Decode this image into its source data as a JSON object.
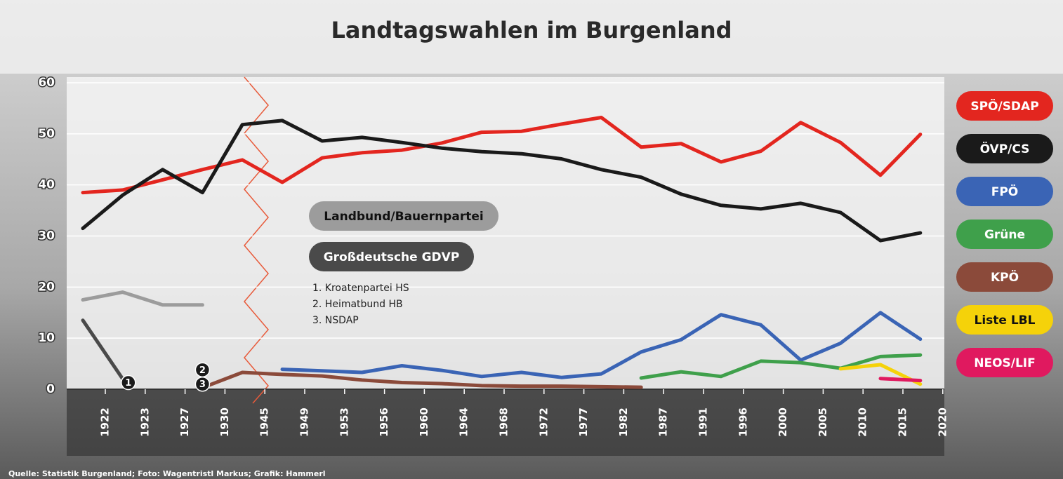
{
  "chart_data": {
    "type": "line",
    "title": "Landtagswahlen im Burgenland",
    "source": "Quelle: Statistik Burgenland; Foto: Wagentristl Markus; Grafik: Hammerl",
    "categories": [
      "1922",
      "1923",
      "1927",
      "1930",
      "1945",
      "1949",
      "1953",
      "1956",
      "1960",
      "1964",
      "1968",
      "1972",
      "1977",
      "1982",
      "1987",
      "1991",
      "1996",
      "2000",
      "2005",
      "2010",
      "2015",
      "2020"
    ],
    "ylim": [
      0,
      60
    ],
    "yticks": [
      0,
      10,
      20,
      30,
      40,
      50,
      60
    ],
    "grid": true,
    "series": [
      {
        "name": "SPÖ/SDAP",
        "color": "#e3261f",
        "values": [
          38.5,
          39,
          41,
          43,
          44.9,
          40.5,
          45.3,
          46.3,
          46.8,
          48.2,
          50.3,
          50.5,
          51.9,
          53.2,
          47.4,
          48.1,
          44.5,
          46.6,
          52.2,
          48.3,
          41.9,
          49.9
        ]
      },
      {
        "name": "ÖVP/CS",
        "color": "#1a1a1a",
        "values": [
          31.5,
          38,
          43,
          38.5,
          51.8,
          52.6,
          48.6,
          49.3,
          48.3,
          47.2,
          46.5,
          46.1,
          45.1,
          43.0,
          41.5,
          38.2,
          36.0,
          35.3,
          36.4,
          34.6,
          29.1,
          30.6
        ]
      },
      {
        "name": "FPÖ",
        "color": "#3a64b5",
        "values": [
          null,
          null,
          null,
          null,
          null,
          3.9,
          3.6,
          3.3,
          4.6,
          3.7,
          2.5,
          3.3,
          2.3,
          3.0,
          7.3,
          9.7,
          14.6,
          12.6,
          5.7,
          9.0,
          15.0,
          9.8
        ]
      },
      {
        "name": "Grüne",
        "color": "#3fa04b",
        "values": [
          null,
          null,
          null,
          null,
          null,
          null,
          null,
          null,
          null,
          null,
          null,
          null,
          null,
          null,
          2.2,
          3.4,
          2.5,
          5.5,
          5.2,
          4.1,
          6.4,
          6.7
        ]
      },
      {
        "name": "KPÖ",
        "color": "#8b4a3a",
        "values": [
          null,
          null,
          null,
          0.3,
          3.3,
          2.9,
          2.6,
          1.8,
          1.3,
          1.1,
          0.7,
          0.6,
          0.6,
          0.5,
          0.4,
          null,
          null,
          null,
          null,
          null,
          null,
          null
        ]
      },
      {
        "name": "Liste LBL",
        "color": "#f5d20a",
        "values": [
          null,
          null,
          null,
          null,
          null,
          null,
          null,
          null,
          null,
          null,
          null,
          null,
          null,
          null,
          null,
          null,
          null,
          null,
          null,
          4.0,
          4.8,
          1.0
        ]
      },
      {
        "name": "NEOS/LIF",
        "color": "#e0195f",
        "values": [
          null,
          null,
          null,
          null,
          null,
          null,
          null,
          null,
          null,
          null,
          null,
          null,
          null,
          null,
          null,
          null,
          null,
          null,
          null,
          null,
          2.1,
          1.7
        ]
      },
      {
        "name": "Landbund/Bauernpartei",
        "color": "#9c9c9c",
        "values": [
          17.5,
          19,
          16.5,
          16.5,
          null,
          null,
          null,
          null,
          null,
          null,
          null,
          null,
          null,
          null,
          null,
          null,
          null,
          null,
          null,
          null,
          null,
          null
        ]
      },
      {
        "name": "Großdeutsche GDVP",
        "color": "#4a4a4a",
        "values": [
          13.5,
          2,
          null,
          null,
          null,
          null,
          null,
          null,
          null,
          null,
          null,
          null,
          null,
          null,
          null,
          null,
          null,
          null,
          null,
          null,
          null,
          null
        ]
      }
    ],
    "badges": [
      {
        "label": "1",
        "category": 1,
        "value": 1.3
      },
      {
        "label": "2",
        "category": 3,
        "value": 3.8
      },
      {
        "label": "3",
        "category": 3,
        "value": 1.0
      }
    ],
    "notes": [
      "1. Kroatenpartei HS",
      "2. Heimatbund HB",
      "3. NSDAP"
    ]
  }
}
